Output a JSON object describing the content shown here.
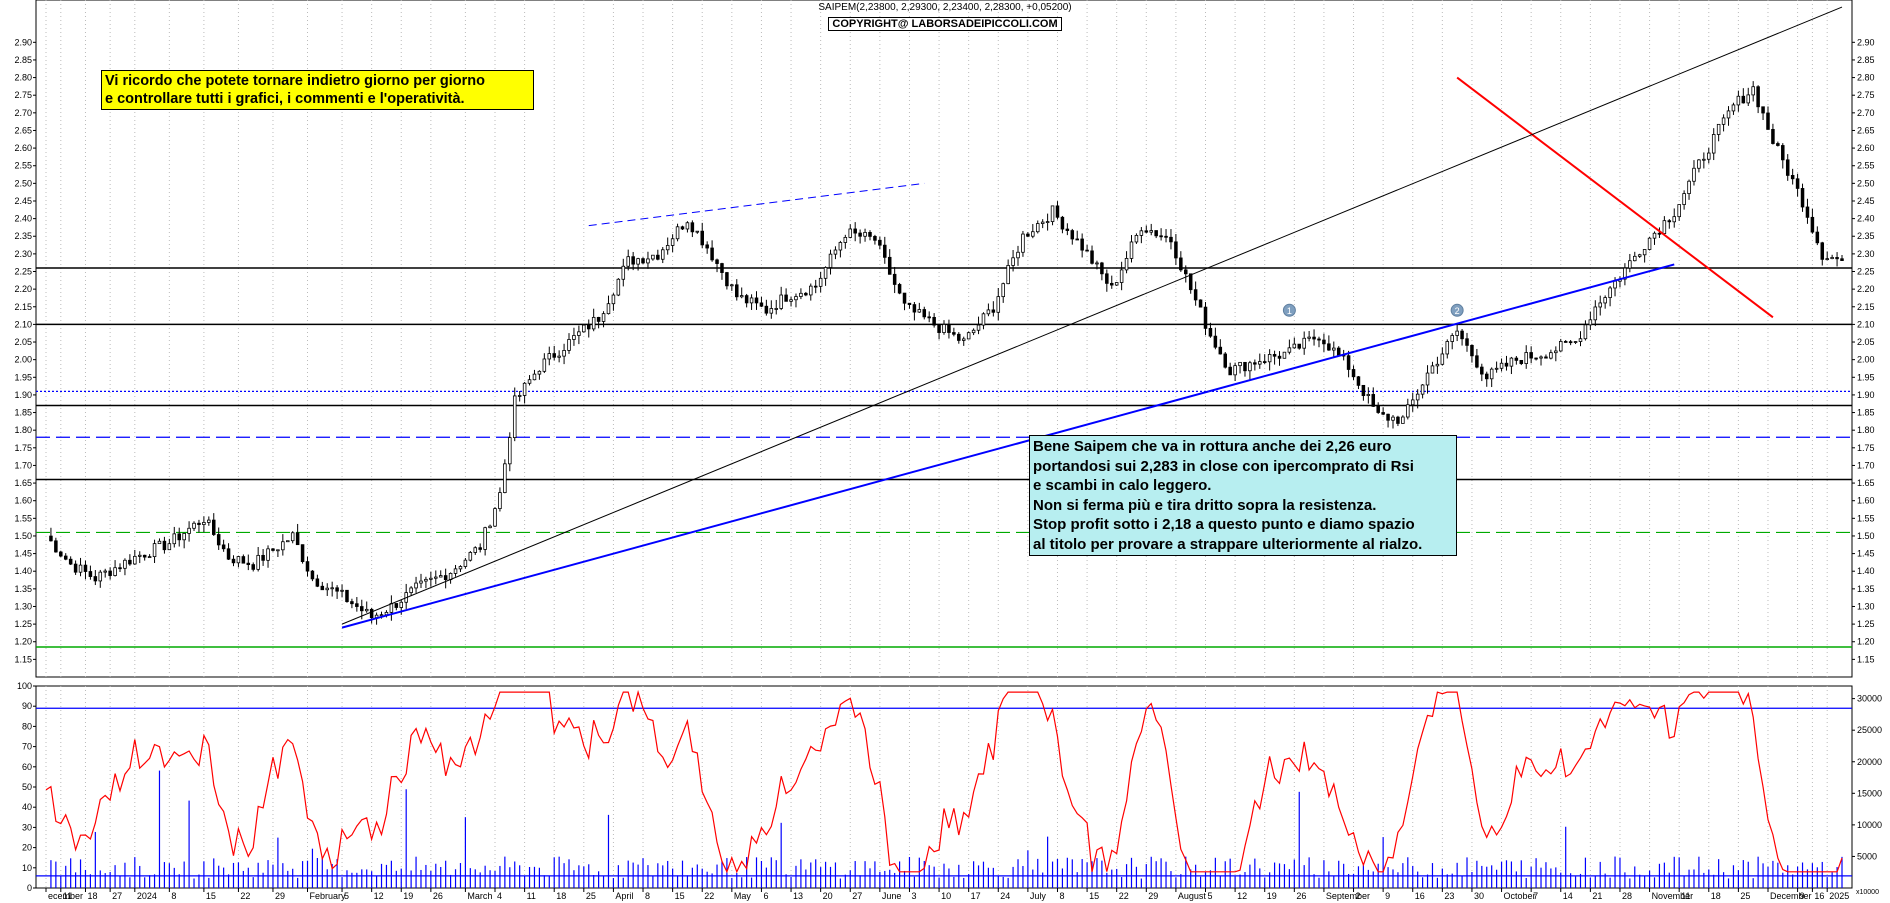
{
  "header": {
    "title": "SAIPEM(2,23800, 2,29300, 2,23400, 2,28300, +0,05200)",
    "copyright": "COPYRIGHT@ LABORSADEIPICCOLI.COM"
  },
  "notes": {
    "yellow": [
      "Vi ricordo che potete tornare indietro giorno per giorno",
      "e controllare tutti i grafici, i commenti e l'operatività."
    ],
    "cyan": [
      "Bene Saipem che va in rottura anche dei 2,26 euro",
      "portandosi sui 2,283 in close con ipercomprato di Rsi",
      "e scambi in calo leggero.",
      "Non si ferma più e tira dritto sopra la resistenza.",
      "Stop profit sotto i 2,18 a questo punto e diamo spazio",
      "al titolo per provare a strappare ulteriormente al rialzo."
    ]
  },
  "chart_data": [
    {
      "type": "candlestick",
      "title": "SAIPEM(2,23800, 2,29300, 2,23400, 2,28300, +0,05200)",
      "ylim": [
        1.1,
        3.02
      ],
      "price_ticks": [
        "2.90",
        "2.85",
        "2.80",
        "2.75",
        "2.70",
        "2.65",
        "2.60",
        "2.55",
        "2.50",
        "2.45",
        "2.40",
        "2.35",
        "2.30",
        "2.25",
        "2.20",
        "2.15",
        "2.10",
        "2.05",
        "2.00",
        "1.95",
        "1.90",
        "1.85",
        "1.80",
        "1.75",
        "1.70",
        "1.65",
        "1.60",
        "1.55",
        "1.50",
        "1.45",
        "1.40",
        "1.35",
        "1.30",
        "1.25",
        "1.20",
        "1.15"
      ],
      "x_range_days": [
        0,
        364
      ],
      "anchors": [
        {
          "d": 0,
          "p": 1.5
        },
        {
          "d": 5,
          "p": 1.42
        },
        {
          "d": 10,
          "p": 1.38
        },
        {
          "d": 18,
          "p": 1.44
        },
        {
          "d": 25,
          "p": 1.48
        },
        {
          "d": 32,
          "p": 1.55
        },
        {
          "d": 37,
          "p": 1.44
        },
        {
          "d": 42,
          "p": 1.42
        },
        {
          "d": 47,
          "p": 1.47
        },
        {
          "d": 50,
          "p": 1.5
        },
        {
          "d": 54,
          "p": 1.38
        },
        {
          "d": 60,
          "p": 1.33
        },
        {
          "d": 66,
          "p": 1.27
        },
        {
          "d": 70,
          "p": 1.3
        },
        {
          "d": 75,
          "p": 1.35
        },
        {
          "d": 82,
          "p": 1.4
        },
        {
          "d": 88,
          "p": 1.47
        },
        {
          "d": 92,
          "p": 1.62
        },
        {
          "d": 95,
          "p": 1.88
        },
        {
          "d": 100,
          "p": 1.98
        },
        {
          "d": 106,
          "p": 2.05
        },
        {
          "d": 112,
          "p": 2.12
        },
        {
          "d": 118,
          "p": 2.28
        },
        {
          "d": 124,
          "p": 2.3
        },
        {
          "d": 130,
          "p": 2.4
        },
        {
          "d": 134,
          "p": 2.32
        },
        {
          "d": 140,
          "p": 2.18
        },
        {
          "d": 146,
          "p": 2.14
        },
        {
          "d": 150,
          "p": 2.18
        },
        {
          "d": 156,
          "p": 2.21
        },
        {
          "d": 162,
          "p": 2.36
        },
        {
          "d": 168,
          "p": 2.34
        },
        {
          "d": 174,
          "p": 2.15
        },
        {
          "d": 180,
          "p": 2.1
        },
        {
          "d": 186,
          "p": 2.05
        },
        {
          "d": 192,
          "p": 2.15
        },
        {
          "d": 198,
          "p": 2.35
        },
        {
          "d": 204,
          "p": 2.42
        },
        {
          "d": 210,
          "p": 2.32
        },
        {
          "d": 216,
          "p": 2.2
        },
        {
          "d": 222,
          "p": 2.38
        },
        {
          "d": 228,
          "p": 2.34
        },
        {
          "d": 232,
          "p": 2.2
        },
        {
          "d": 236,
          "p": 2.07
        },
        {
          "d": 240,
          "p": 1.97
        },
        {
          "d": 246,
          "p": 2.0
        },
        {
          "d": 252,
          "p": 2.02
        },
        {
          "d": 258,
          "p": 2.07
        },
        {
          "d": 264,
          "p": 1.98
        },
        {
          "d": 270,
          "p": 1.84
        },
        {
          "d": 275,
          "p": 1.83
        },
        {
          "d": 280,
          "p": 1.96
        },
        {
          "d": 286,
          "p": 2.08
        },
        {
          "d": 292,
          "p": 1.95
        },
        {
          "d": 298,
          "p": 2.0
        },
        {
          "d": 304,
          "p": 2.02
        },
        {
          "d": 310,
          "p": 2.05
        },
        {
          "d": 314,
          "p": 2.15
        },
        {
          "d": 318,
          "p": 2.22
        },
        {
          "d": 324,
          "p": 2.33
        },
        {
          "d": 330,
          "p": 2.42
        },
        {
          "d": 336,
          "p": 2.58
        },
        {
          "d": 342,
          "p": 2.72
        },
        {
          "d": 346,
          "p": 2.77
        },
        {
          "d": 350,
          "p": 2.62
        },
        {
          "d": 356,
          "p": 2.45
        },
        {
          "d": 360,
          "p": 2.3
        },
        {
          "d": 364,
          "p": 2.28
        }
      ],
      "trendlines": [
        {
          "color": "#ff0000",
          "style": "solid",
          "width": 2,
          "from": {
            "d": 286,
            "p": 2.8
          },
          "to": {
            "d": 350,
            "p": 2.12
          }
        },
        {
          "color": "#0000ff",
          "style": "solid",
          "width": 2,
          "from": {
            "d": 60,
            "p": 1.24
          },
          "to": {
            "d": 330,
            "p": 2.27
          }
        },
        {
          "color": "#000000",
          "style": "solid",
          "width": 1,
          "from": {
            "d": 60,
            "p": 1.25
          },
          "to": {
            "d": 364,
            "p": 3.0
          }
        },
        {
          "color": "#0000ff",
          "style": "dashed",
          "width": 1,
          "from": {
            "d": 110,
            "p": 2.38
          },
          "to": {
            "d": 178,
            "p": 2.5
          }
        }
      ],
      "horizontal_levels": [
        {
          "price": 2.26,
          "color": "#000000",
          "style": "solid"
        },
        {
          "price": 2.1,
          "color": "#000000",
          "style": "solid"
        },
        {
          "price": 1.91,
          "color": "#0000ff",
          "style": "dotted"
        },
        {
          "price": 1.87,
          "color": "#000000",
          "style": "solid"
        },
        {
          "price": 1.78,
          "color": "#0000ff",
          "style": "dashed"
        },
        {
          "price": 1.66,
          "color": "#000000",
          "style": "solid"
        },
        {
          "price": 1.51,
          "color": "#00aa00",
          "style": "dashed"
        },
        {
          "price": 1.185,
          "color": "#00aa00",
          "style": "solid"
        }
      ],
      "markers": [
        "1",
        "2"
      ]
    },
    {
      "type": "line",
      "name": "RSI",
      "ylim": [
        0,
        100
      ],
      "ticks": [
        "100",
        "90",
        "80",
        "70",
        "60",
        "50",
        "40",
        "30",
        "20",
        "10",
        "0"
      ],
      "levels": [
        89,
        6
      ],
      "volume_ticks": [
        "30000",
        "25000",
        "20000",
        "15000",
        "10000",
        "5000"
      ],
      "volume_unit": "x10000"
    }
  ],
  "x_axis": {
    "labels": [
      {
        "d": 0,
        "t": "ecember"
      },
      {
        "d": 3,
        "t": "11"
      },
      {
        "d": 8,
        "t": "18"
      },
      {
        "d": 13,
        "t": "27"
      },
      {
        "d": 18,
        "t": "2024"
      },
      {
        "d": 25,
        "t": "8"
      },
      {
        "d": 32,
        "t": "15"
      },
      {
        "d": 39,
        "t": "22"
      },
      {
        "d": 46,
        "t": "29"
      },
      {
        "d": 53,
        "t": "February"
      },
      {
        "d": 60,
        "t": "5"
      },
      {
        "d": 66,
        "t": "12"
      },
      {
        "d": 72,
        "t": "19"
      },
      {
        "d": 78,
        "t": "26"
      },
      {
        "d": 85,
        "t": "March"
      },
      {
        "d": 91,
        "t": "4"
      },
      {
        "d": 97,
        "t": "11"
      },
      {
        "d": 103,
        "t": "18"
      },
      {
        "d": 109,
        "t": "25"
      },
      {
        "d": 115,
        "t": "April"
      },
      {
        "d": 121,
        "t": "8"
      },
      {
        "d": 127,
        "t": "15"
      },
      {
        "d": 133,
        "t": "22"
      },
      {
        "d": 139,
        "t": "May"
      },
      {
        "d": 145,
        "t": "6"
      },
      {
        "d": 151,
        "t": "13"
      },
      {
        "d": 157,
        "t": "20"
      },
      {
        "d": 163,
        "t": "27"
      },
      {
        "d": 169,
        "t": "June"
      },
      {
        "d": 175,
        "t": "3"
      },
      {
        "d": 181,
        "t": "10"
      },
      {
        "d": 187,
        "t": "17"
      },
      {
        "d": 193,
        "t": "24"
      },
      {
        "d": 199,
        "t": "July"
      },
      {
        "d": 205,
        "t": "8"
      },
      {
        "d": 211,
        "t": "15"
      },
      {
        "d": 217,
        "t": "22"
      },
      {
        "d": 223,
        "t": "29"
      },
      {
        "d": 229,
        "t": "August"
      },
      {
        "d": 235,
        "t": "5"
      },
      {
        "d": 241,
        "t": "12"
      },
      {
        "d": 247,
        "t": "19"
      },
      {
        "d": 253,
        "t": "26"
      },
      {
        "d": 259,
        "t": "September"
      },
      {
        "d": 265,
        "t": "2"
      },
      {
        "d": 271,
        "t": "9"
      },
      {
        "d": 277,
        "t": "16"
      },
      {
        "d": 283,
        "t": "23"
      },
      {
        "d": 289,
        "t": "30"
      },
      {
        "d": 295,
        "t": "October"
      },
      {
        "d": 301,
        "t": "7"
      },
      {
        "d": 307,
        "t": "14"
      },
      {
        "d": 313,
        "t": "21"
      },
      {
        "d": 319,
        "t": "28"
      },
      {
        "d": 325,
        "t": "November"
      },
      {
        "d": 331,
        "t": "11"
      },
      {
        "d": 337,
        "t": "18"
      },
      {
        "d": 343,
        "t": "25"
      },
      {
        "d": 349,
        "t": "December"
      },
      {
        "d": 355,
        "t": "9"
      },
      {
        "d": 358,
        "t": "16"
      },
      {
        "d": 361,
        "t": "2025"
      }
    ]
  }
}
